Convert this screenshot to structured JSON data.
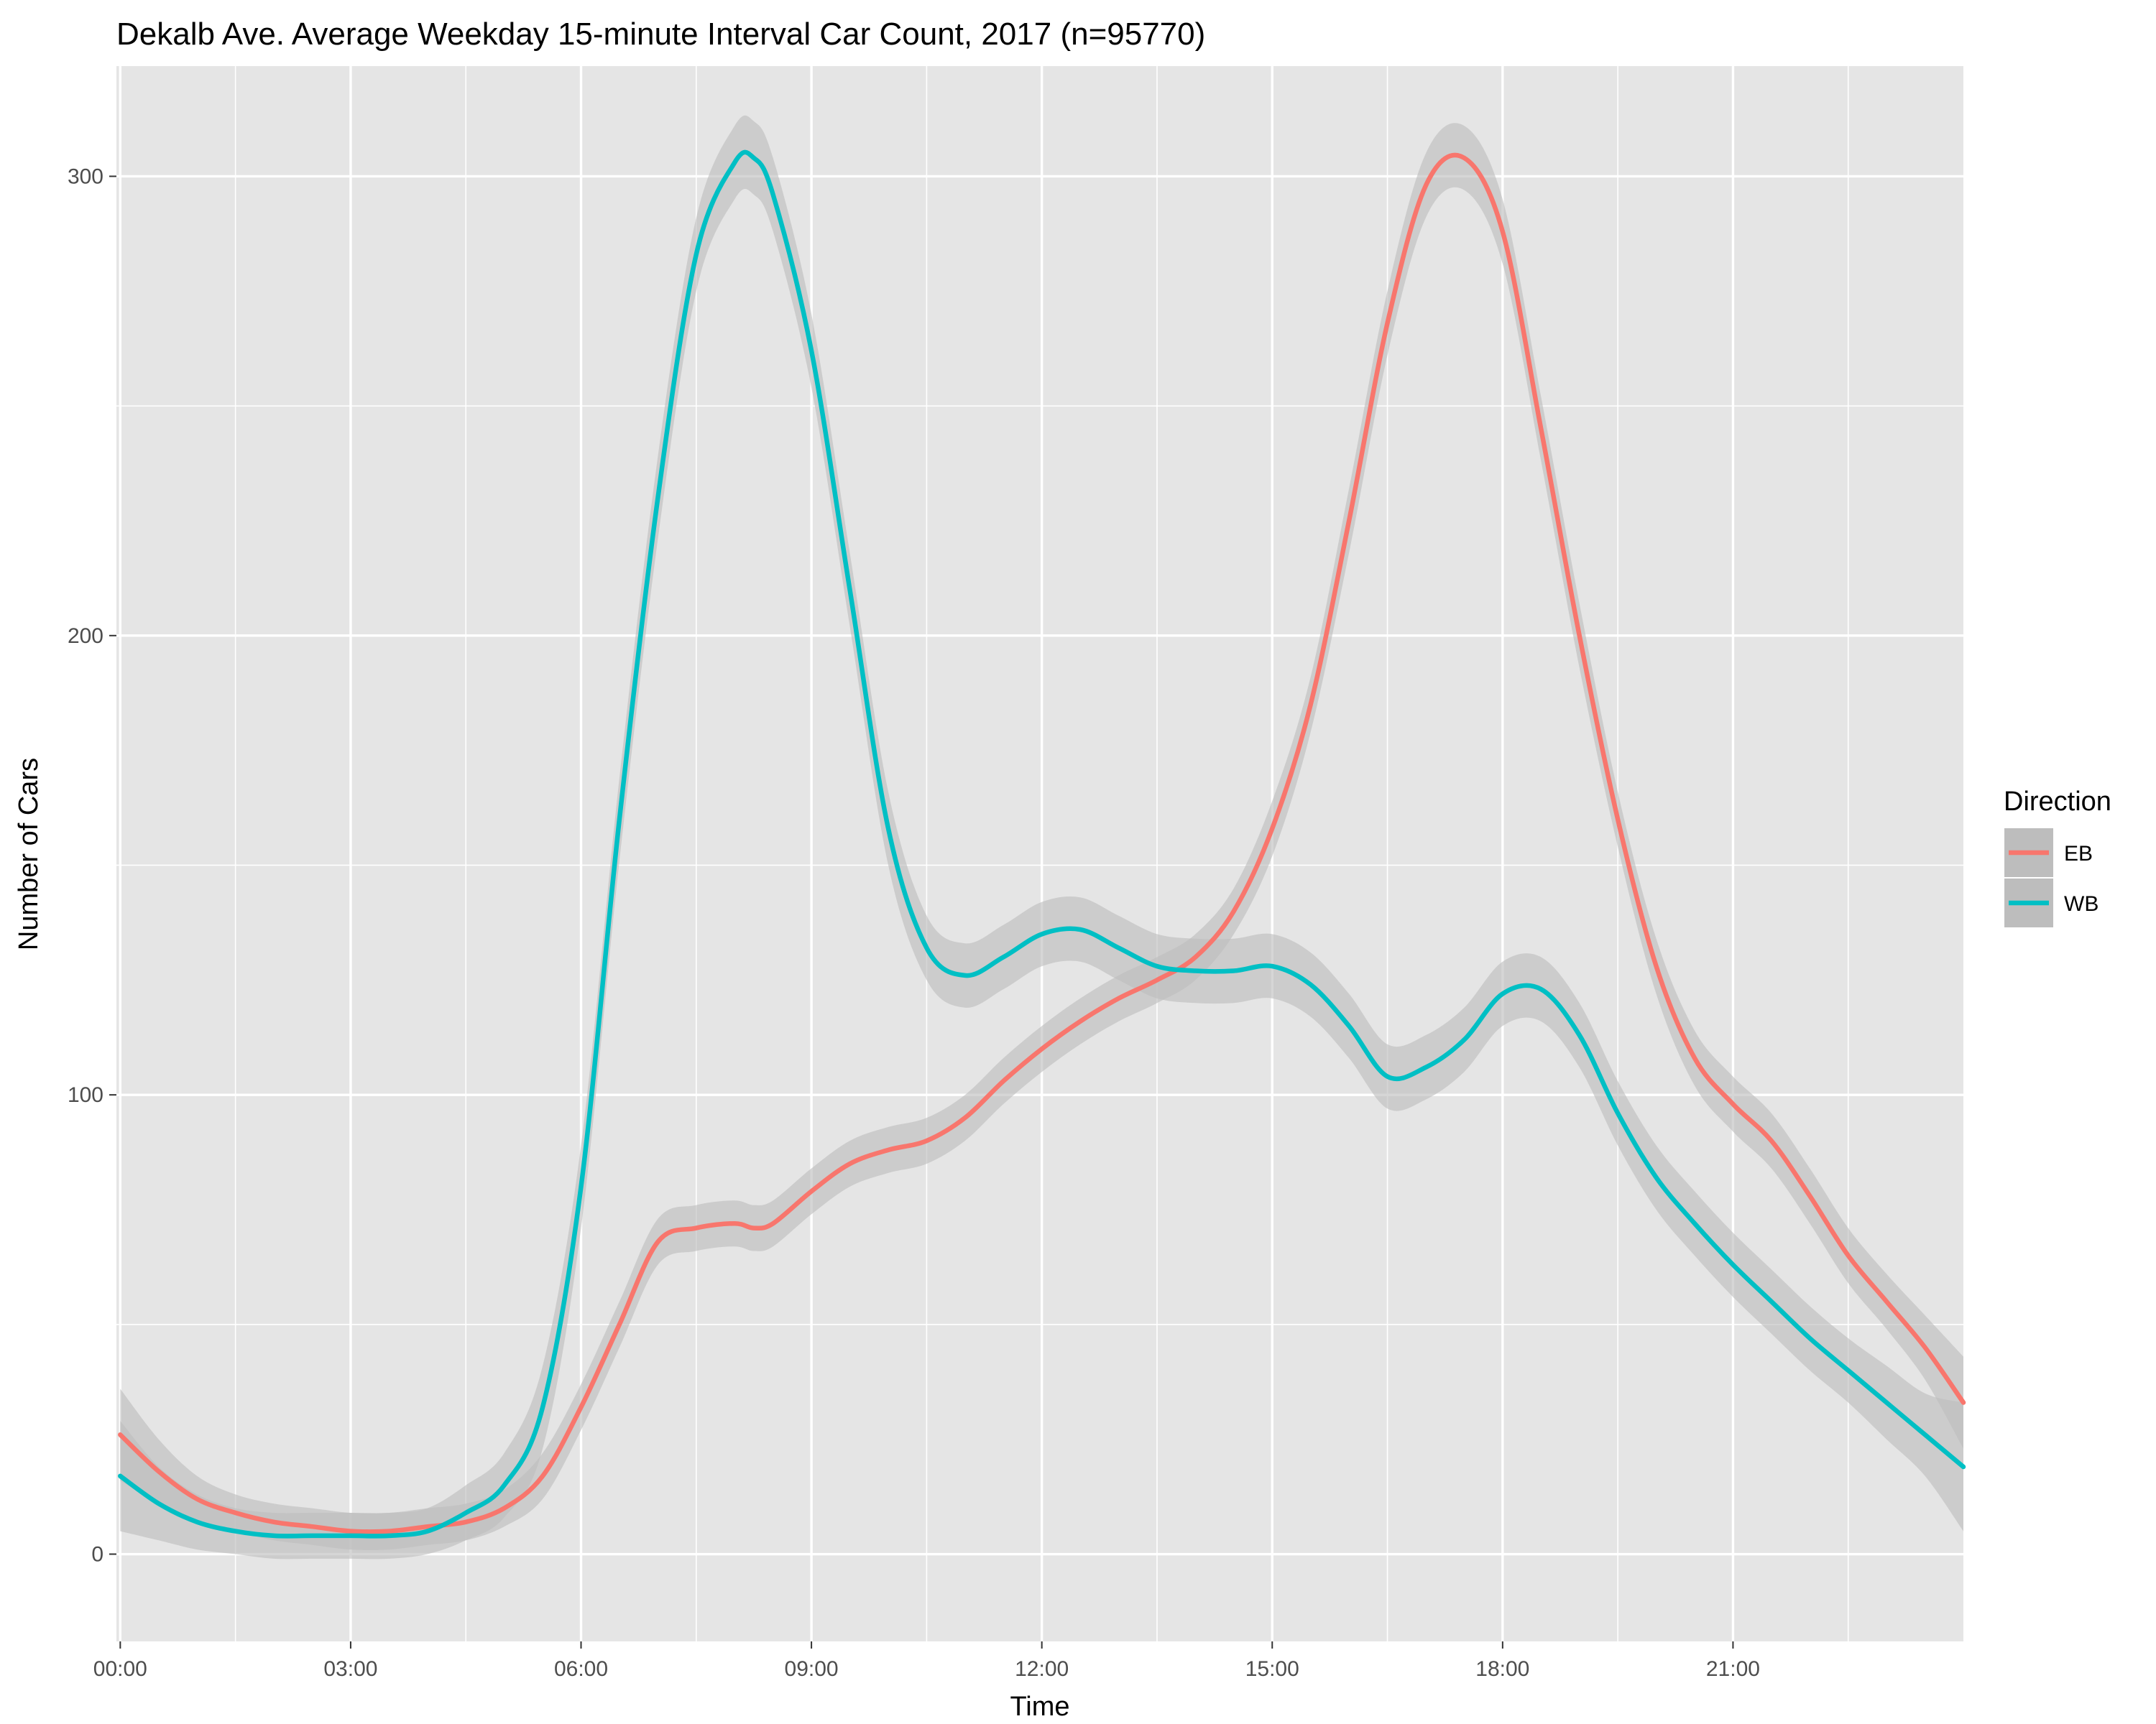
{
  "chart_data": {
    "type": "line",
    "title": "Dekalb Ave. Average Weekday 15-minute Interval Car Count, 2017 (n=95770)",
    "xlabel": "Time",
    "ylabel": "Number of Cars",
    "x_tick_labels": [
      "00:00",
      "03:00",
      "06:00",
      "09:00",
      "12:00",
      "15:00",
      "18:00",
      "21:00"
    ],
    "x_tick_hours": [
      0,
      3,
      6,
      9,
      12,
      15,
      18,
      21
    ],
    "y_ticks": [
      0,
      100,
      200,
      300
    ],
    "xlim": [
      -0.05,
      24.0
    ],
    "ylim": [
      -19,
      324
    ],
    "x_unit": "hours",
    "grid": true,
    "confidence_band": true,
    "legend": {
      "title": "Direction",
      "position": "right"
    },
    "colors": {
      "EB": "#f8766d",
      "WB": "#00bfc4",
      "band": "#bdbdbd",
      "panel": "#e5e5e5",
      "grid": "#ffffff"
    },
    "x": [
      0,
      0.5,
      1,
      1.5,
      2,
      2.5,
      3,
      3.5,
      4,
      4.5,
      5,
      5.5,
      6,
      6.5,
      7,
      7.5,
      8,
      8.25,
      8.5,
      9,
      9.5,
      10,
      10.5,
      11,
      11.5,
      12,
      12.5,
      13,
      13.5,
      14,
      14.5,
      15,
      15.5,
      16,
      16.5,
      17,
      17.5,
      18,
      18.5,
      19,
      19.5,
      20,
      20.5,
      21,
      21.5,
      22,
      22.5,
      23,
      23.5,
      24
    ],
    "series": [
      {
        "name": "EB",
        "values": [
          26,
          18,
          12,
          9,
          7,
          6,
          5,
          5,
          6,
          7,
          10,
          17,
          32,
          50,
          68,
          71,
          72,
          71,
          72,
          79,
          85,
          88,
          90,
          95,
          103,
          110,
          116,
          121,
          125,
          130,
          140,
          158,
          185,
          225,
          268,
          298,
          304,
          288,
          245,
          200,
          160,
          128,
          108,
          98,
          90,
          78,
          65,
          55,
          45,
          33
        ],
        "band_width": [
          10,
          7,
          5,
          4,
          4,
          4,
          4,
          4,
          4,
          4,
          4,
          5,
          5,
          5,
          5,
          5,
          5,
          5,
          5,
          5,
          5,
          5,
          5,
          5,
          5,
          5,
          5,
          5,
          5,
          5,
          5,
          6,
          6,
          7,
          7,
          7,
          7,
          7,
          7,
          7,
          6,
          6,
          6,
          6,
          6,
          6,
          6,
          6,
          7,
          10
        ]
      },
      {
        "name": "WB",
        "values": [
          17,
          11,
          7,
          5,
          4,
          4,
          4,
          4,
          5,
          9,
          15,
          32,
          80,
          160,
          230,
          283,
          303,
          304,
          296,
          262,
          210,
          158,
          132,
          126,
          130,
          135,
          136,
          132,
          128,
          127,
          127,
          128,
          124,
          115,
          104,
          106,
          112,
          122,
          123,
          113,
          96,
          82,
          72,
          63,
          55,
          47,
          40,
          33,
          26,
          19
        ],
        "band_width": [
          12,
          8,
          6,
          5,
          5,
          5,
          5,
          5,
          5,
          6,
          7,
          9,
          9,
          9,
          9,
          8,
          8,
          8,
          8,
          8,
          8,
          8,
          7,
          7,
          7,
          7,
          7,
          7,
          7,
          7,
          7,
          7,
          7,
          7,
          7,
          7,
          7,
          7,
          7,
          7,
          7,
          7,
          7,
          7,
          7,
          7,
          7,
          8,
          9,
          14
        ]
      }
    ]
  }
}
